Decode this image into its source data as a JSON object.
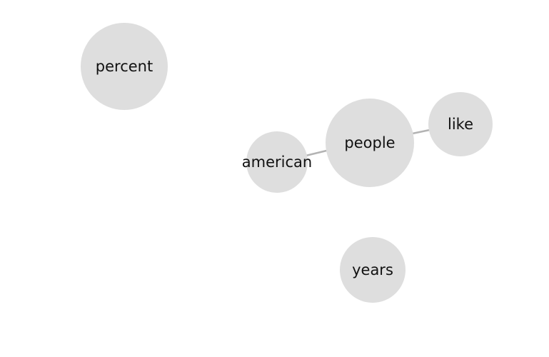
{
  "graph": {
    "nodes": [
      {
        "id": "percent",
        "label": "percent"
      },
      {
        "id": "american",
        "label": "american"
      },
      {
        "id": "people",
        "label": "people"
      },
      {
        "id": "like",
        "label": "like"
      },
      {
        "id": "years",
        "label": "years"
      }
    ],
    "edges": [
      {
        "source": "american",
        "target": "people"
      },
      {
        "source": "people",
        "target": "like"
      }
    ],
    "colors": {
      "node_fill": "#dedede",
      "edge": "#b3b3b3",
      "label": "#111111"
    }
  }
}
